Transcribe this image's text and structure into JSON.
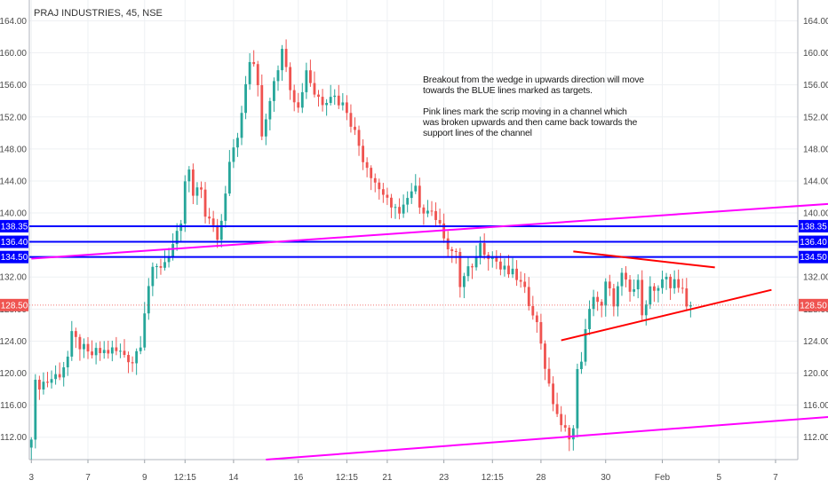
{
  "header": {
    "title": "PRAJ INDUSTRIES, 45, NSE"
  },
  "annotation": {
    "paragraph1": "Breakout from the wedge in upwards direction will move towards the BLUE lines marked as targets.",
    "paragraph2": "Pink lines mark the scrip moving in a channel which was broken upwards and then came back towards the support lines of the channel"
  },
  "chart_data": {
    "type": "candlestick",
    "ylim": [
      109.2,
      166.6
    ],
    "y_ticks": [
      112,
      116,
      120,
      124,
      128,
      132,
      136,
      140,
      144,
      148,
      152,
      156,
      160,
      164
    ],
    "y_tick_labels": [
      "112.00",
      "116.00",
      "120.00",
      "124.00",
      "128.00",
      "132.00",
      "136.00",
      "140.00",
      "144.00",
      "148.00",
      "152.00",
      "156.00",
      "160.00",
      "164.00"
    ],
    "x_tick_labels": [
      "3",
      "7",
      "9",
      "12:15",
      "14",
      "16",
      "12:15",
      "21",
      "23",
      "12:15",
      "28",
      "30",
      "Feb",
      "5",
      "7"
    ],
    "x_tick_index": [
      0,
      14,
      28,
      38,
      50,
      66,
      78,
      88,
      102,
      114,
      126,
      142,
      156,
      170,
      184
    ],
    "num_bars": 190,
    "last_price": 128.5,
    "last_price_label": "128.50",
    "colors": {
      "up": "#26a69a",
      "down": "#ef5350",
      "target": "#0000ff",
      "channel": "#ff00ff",
      "wedge": "#ff0000",
      "last": "#ef5350"
    },
    "target_levels": [
      {
        "value": 138.35,
        "label": "138.35"
      },
      {
        "value": 136.4,
        "label": "136.40"
      },
      {
        "value": 134.5,
        "label": "134.50"
      }
    ],
    "channel_lines": [
      {
        "x1": 0,
        "y1": 134.3,
        "x2": 199,
        "y2": 141.2
      },
      {
        "x1": 58,
        "y1": 109.2,
        "x2": 199,
        "y2": 114.6
      }
    ],
    "wedge_lines": [
      {
        "x1": 134,
        "y1": 135.2,
        "x2": 169,
        "y2": 133.2
      },
      {
        "x1": 131,
        "y1": 124.1,
        "x2": 183,
        "y2": 130.4
      }
    ],
    "anchors": [
      [
        0,
        112.5
      ],
      [
        1,
        118.5
      ],
      [
        4,
        119.0
      ],
      [
        7,
        120.0
      ],
      [
        9,
        122.0
      ],
      [
        10,
        124.5
      ],
      [
        12,
        123.5
      ],
      [
        14,
        122.2
      ],
      [
        17,
        122.6
      ],
      [
        20,
        122.8
      ],
      [
        23,
        122.4
      ],
      [
        25,
        121.5
      ],
      [
        27,
        124.0
      ],
      [
        28,
        128.0
      ],
      [
        29,
        131.0
      ],
      [
        30,
        132.5
      ],
      [
        33,
        134.0
      ],
      [
        35,
        136.0
      ],
      [
        37,
        138.0
      ],
      [
        38,
        144.0
      ],
      [
        39,
        145.0
      ],
      [
        40,
        142.0
      ],
      [
        42,
        143.0
      ],
      [
        43,
        140.0
      ],
      [
        44,
        139.0
      ],
      [
        46,
        137.0
      ],
      [
        47,
        139.0
      ],
      [
        48,
        143.0
      ],
      [
        49,
        147.0
      ],
      [
        50,
        148.5
      ],
      [
        51,
        150.0
      ],
      [
        52,
        152.0
      ],
      [
        53,
        156.0
      ],
      [
        54,
        159.0
      ],
      [
        55,
        158.0
      ],
      [
        56,
        156.0
      ],
      [
        57,
        150.0
      ],
      [
        58,
        152.0
      ],
      [
        60,
        157.0
      ],
      [
        62,
        160.0
      ],
      [
        63,
        159.0
      ],
      [
        64,
        156.0
      ],
      [
        66,
        153.0
      ],
      [
        68,
        158.0
      ],
      [
        70,
        155.0
      ],
      [
        72,
        154.0
      ],
      [
        74,
        155.0
      ],
      [
        76,
        154.0
      ],
      [
        78,
        153.0
      ],
      [
        80,
        150.0
      ],
      [
        82,
        147.0
      ],
      [
        84,
        145.0
      ],
      [
        86,
        143.0
      ],
      [
        88,
        142.0
      ],
      [
        89,
        140.0
      ],
      [
        91,
        140.5
      ],
      [
        93,
        141.5
      ],
      [
        95,
        143.0
      ],
      [
        96,
        140.0
      ],
      [
        98,
        141.0
      ],
      [
        100,
        139.5
      ],
      [
        101,
        138.0
      ],
      [
        102,
        137.5
      ],
      [
        103,
        136.0
      ],
      [
        105,
        134.5
      ],
      [
        106,
        131.0
      ],
      [
        108,
        133.0
      ],
      [
        109,
        132.5
      ],
      [
        110,
        135.0
      ],
      [
        111,
        136.0
      ],
      [
        113,
        135.0
      ],
      [
        115,
        134.0
      ],
      [
        116,
        133.0
      ],
      [
        118,
        132.5
      ],
      [
        120,
        132.0
      ],
      [
        122,
        130.0
      ],
      [
        124,
        128.0
      ],
      [
        125,
        126.0
      ],
      [
        126,
        124.0
      ],
      [
        127,
        121.0
      ],
      [
        128,
        118.0
      ],
      [
        129,
        116.5
      ],
      [
        130,
        115.0
      ],
      [
        131,
        113.0
      ],
      [
        133,
        112.5
      ],
      [
        134,
        113.0
      ],
      [
        135,
        120.0
      ],
      [
        136,
        122.0
      ],
      [
        137,
        125.0
      ],
      [
        138,
        127.5
      ],
      [
        139,
        130.0
      ],
      [
        141,
        128.0
      ],
      [
        142,
        131.0
      ],
      [
        144,
        129.0
      ],
      [
        146,
        132.0
      ],
      [
        148,
        130.0
      ],
      [
        150,
        131.0
      ],
      [
        151,
        128.0
      ],
      [
        153,
        130.5
      ],
      [
        155,
        130.0
      ],
      [
        157,
        132.0
      ],
      [
        158,
        131.0
      ],
      [
        159,
        132.0
      ],
      [
        160,
        130.0
      ],
      [
        161,
        130.5
      ],
      [
        162,
        129.0
      ],
      [
        163,
        128.5
      ]
    ]
  }
}
